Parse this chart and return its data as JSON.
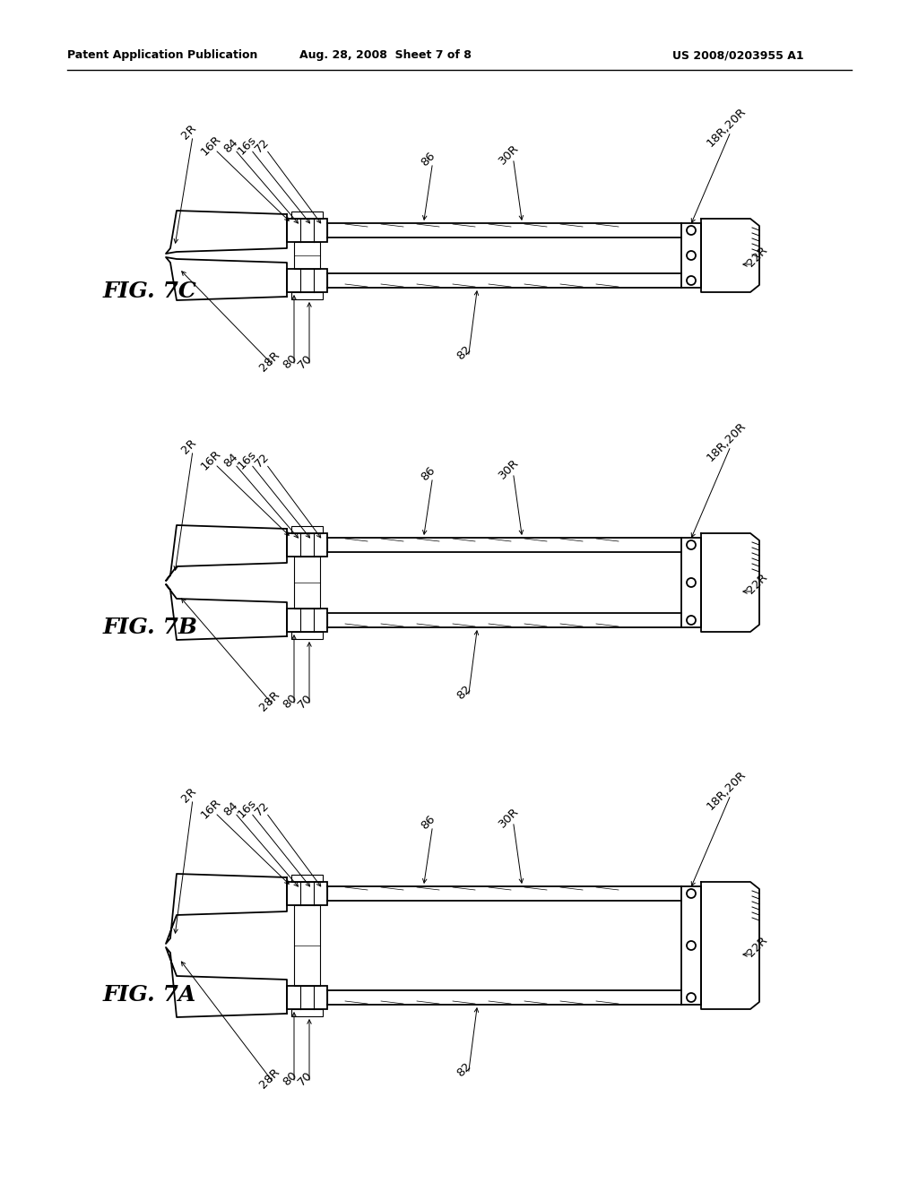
{
  "background_color": "#ffffff",
  "header_left": "Patent Application Publication",
  "header_center": "Aug. 28, 2008  Sheet 7 of 8",
  "header_right": "US 2008/0203955 A1",
  "figures": [
    {
      "label": "FIG. 7C",
      "state": "7C"
    },
    {
      "label": "FIG. 7B",
      "state": "7B"
    },
    {
      "label": "FIG. 7A",
      "state": "7A"
    }
  ]
}
